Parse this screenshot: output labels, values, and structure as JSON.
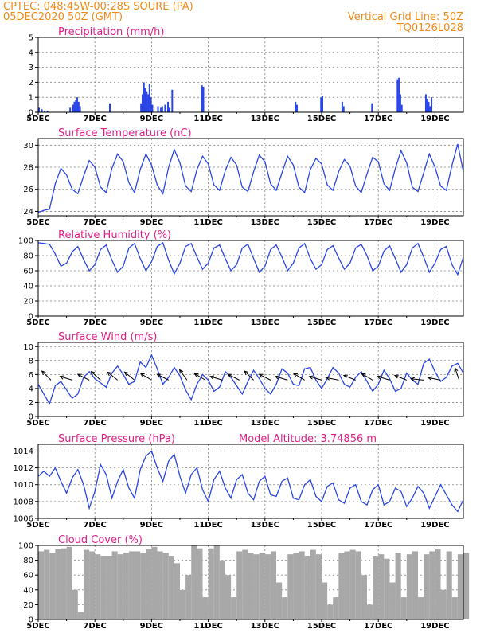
{
  "header": {
    "station": "CPTEC:   048:45W-00:28S   SOURE (PA)",
    "run": "05DEC2020 50Z (GMT)",
    "grid_note": "Vertical Grid Line: 50Z",
    "model": "TQ0126L028"
  },
  "colors": {
    "header": "#f08a18",
    "panel_title": "#e0208a",
    "series": "#2a46e6",
    "cloud": "#a8a8a8",
    "grid": "#888888",
    "wind_vector": "#000000"
  },
  "x_axis": {
    "ticks": [
      "5DEC",
      "7DEC",
      "9DEC",
      "11DEC",
      "13DEC",
      "15DEC",
      "17DEC",
      "19DEC"
    ],
    "start_day": 5,
    "end_day": 20
  },
  "chart_data": [
    {
      "type": "bar",
      "title": "Precipitation (mm/h)",
      "ylim": [
        0,
        5
      ],
      "yticks": [
        0,
        1,
        2,
        3,
        4,
        5
      ],
      "grid": true,
      "bars": [
        [
          5.0,
          0.3
        ],
        [
          5.1,
          0.2
        ],
        [
          5.2,
          0.1
        ],
        [
          5.3,
          0.1
        ],
        [
          6.1,
          0.3
        ],
        [
          6.2,
          0.5
        ],
        [
          6.25,
          0.7
        ],
        [
          6.3,
          0.8
        ],
        [
          6.35,
          1.0
        ],
        [
          6.4,
          0.7
        ],
        [
          6.45,
          0.4
        ],
        [
          7.5,
          0.6
        ],
        [
          8.6,
          0.6
        ],
        [
          8.65,
          1.2
        ],
        [
          8.7,
          2.0
        ],
        [
          8.75,
          1.6
        ],
        [
          8.8,
          1.4
        ],
        [
          8.85,
          1.2
        ],
        [
          8.9,
          1.9
        ],
        [
          8.95,
          1.0
        ],
        [
          9.0,
          0.5
        ],
        [
          9.2,
          0.4
        ],
        [
          9.3,
          0.3
        ],
        [
          9.35,
          0.4
        ],
        [
          9.45,
          0.5
        ],
        [
          9.55,
          0.7
        ],
        [
          9.6,
          0.3
        ],
        [
          9.7,
          1.5
        ],
        [
          10.75,
          1.8
        ],
        [
          10.8,
          1.7
        ],
        [
          14.05,
          0.7
        ],
        [
          14.1,
          0.5
        ],
        [
          14.95,
          1.0
        ],
        [
          15.0,
          1.1
        ],
        [
          15.7,
          0.7
        ],
        [
          15.75,
          0.4
        ],
        [
          16.75,
          0.6
        ],
        [
          17.65,
          2.2
        ],
        [
          17.7,
          2.3
        ],
        [
          17.75,
          1.2
        ],
        [
          17.8,
          0.5
        ],
        [
          18.65,
          1.2
        ],
        [
          18.7,
          0.9
        ],
        [
          18.75,
          0.7
        ],
        [
          18.8,
          0.4
        ],
        [
          18.85,
          1.0
        ]
      ]
    },
    {
      "type": "line",
      "title": "Surface Temperature (nC)",
      "ylim": [
        23.6,
        30.6
      ],
      "yticks": [
        24,
        26,
        28,
        30
      ],
      "grid": true,
      "x": [
        5.0,
        5.2,
        5.4,
        5.6,
        5.8,
        6.0,
        6.2,
        6.4,
        6.6,
        6.8,
        7.0,
        7.2,
        7.4,
        7.6,
        7.8,
        8.0,
        8.2,
        8.4,
        8.6,
        8.8,
        9.0,
        9.2,
        9.4,
        9.6,
        9.8,
        10.0,
        10.2,
        10.4,
        10.6,
        10.8,
        11.0,
        11.2,
        11.4,
        11.6,
        11.8,
        12.0,
        12.2,
        12.4,
        12.6,
        12.8,
        13.0,
        13.2,
        13.4,
        13.6,
        13.8,
        14.0,
        14.2,
        14.4,
        14.6,
        14.8,
        15.0,
        15.2,
        15.4,
        15.6,
        15.8,
        16.0,
        16.2,
        16.4,
        16.6,
        16.8,
        17.0,
        17.2,
        17.4,
        17.6,
        17.8,
        18.0,
        18.2,
        18.4,
        18.6,
        18.8,
        19.0,
        19.2,
        19.4,
        19.6,
        19.8,
        20.0
      ],
      "y": [
        23.9,
        24.1,
        24.2,
        26.5,
        27.9,
        27.3,
        26.0,
        25.6,
        27.2,
        28.6,
        28.0,
        26.2,
        25.7,
        27.9,
        29.2,
        28.5,
        26.6,
        25.7,
        27.8,
        29.2,
        28.2,
        26.4,
        25.6,
        28.0,
        29.6,
        28.4,
        26.3,
        25.8,
        27.8,
        29.0,
        28.3,
        26.4,
        25.9,
        27.7,
        28.9,
        28.2,
        26.2,
        25.8,
        27.6,
        29.1,
        28.5,
        26.5,
        25.9,
        27.5,
        29.0,
        28.2,
        26.2,
        25.7,
        27.8,
        28.8,
        28.3,
        26.4,
        25.9,
        27.6,
        28.7,
        28.1,
        26.3,
        25.7,
        27.4,
        28.9,
        28.5,
        26.5,
        25.9,
        27.9,
        29.5,
        28.4,
        26.2,
        25.8,
        27.5,
        29.2,
        28.0,
        26.3,
        25.9,
        28.2,
        30.1,
        27.6
      ]
    },
    {
      "type": "line",
      "title": "Relative Humidity (%)",
      "ylim": [
        0,
        100
      ],
      "yticks": [
        0,
        20,
        40,
        60,
        80,
        100
      ],
      "grid": true,
      "x": [
        5.0,
        5.2,
        5.4,
        5.6,
        5.8,
        6.0,
        6.2,
        6.4,
        6.6,
        6.8,
        7.0,
        7.2,
        7.4,
        7.6,
        7.8,
        8.0,
        8.2,
        8.4,
        8.6,
        8.8,
        9.0,
        9.2,
        9.4,
        9.6,
        9.8,
        10.0,
        10.2,
        10.4,
        10.6,
        10.8,
        11.0,
        11.2,
        11.4,
        11.6,
        11.8,
        12.0,
        12.2,
        12.4,
        12.6,
        12.8,
        13.0,
        13.2,
        13.4,
        13.6,
        13.8,
        14.0,
        14.2,
        14.4,
        14.6,
        14.8,
        15.0,
        15.2,
        15.4,
        15.6,
        15.8,
        16.0,
        16.2,
        16.4,
        16.6,
        16.8,
        17.0,
        17.2,
        17.4,
        17.6,
        17.8,
        18.0,
        18.2,
        18.4,
        18.6,
        18.8,
        19.0,
        19.2,
        19.4,
        19.6,
        19.8,
        20.0
      ],
      "y": [
        97,
        96,
        95,
        82,
        66,
        70,
        85,
        92,
        75,
        60,
        68,
        88,
        94,
        74,
        58,
        66,
        90,
        96,
        76,
        60,
        72,
        92,
        97,
        74,
        56,
        70,
        92,
        96,
        78,
        62,
        70,
        90,
        94,
        76,
        60,
        68,
        90,
        95,
        76,
        58,
        66,
        88,
        94,
        78,
        60,
        70,
        90,
        96,
        76,
        62,
        68,
        88,
        93,
        77,
        62,
        70,
        90,
        95,
        80,
        60,
        66,
        86,
        93,
        76,
        58,
        68,
        90,
        96,
        78,
        58,
        70,
        88,
        92,
        68,
        55,
        78
      ]
    },
    {
      "type": "line",
      "title": "Surface Wind (m/s)",
      "ylim": [
        0,
        10.6
      ],
      "yticks": [
        0,
        2,
        4,
        6,
        8,
        10
      ],
      "grid": true,
      "x": [
        5.0,
        5.2,
        5.4,
        5.6,
        5.8,
        6.0,
        6.2,
        6.4,
        6.6,
        6.8,
        7.0,
        7.2,
        7.4,
        7.6,
        7.8,
        8.0,
        8.2,
        8.4,
        8.6,
        8.8,
        9.0,
        9.2,
        9.4,
        9.6,
        9.8,
        10.0,
        10.2,
        10.4,
        10.6,
        10.8,
        11.0,
        11.2,
        11.4,
        11.6,
        11.8,
        12.0,
        12.2,
        12.4,
        12.6,
        12.8,
        13.0,
        13.2,
        13.4,
        13.6,
        13.8,
        14.0,
        14.2,
        14.4,
        14.6,
        14.8,
        15.0,
        15.2,
        15.4,
        15.6,
        15.8,
        16.0,
        16.2,
        16.4,
        16.6,
        16.8,
        17.0,
        17.2,
        17.4,
        17.6,
        17.8,
        18.0,
        18.2,
        18.4,
        18.6,
        18.8,
        19.0,
        19.2,
        19.4,
        19.6,
        19.8,
        20.0
      ],
      "y": [
        4.6,
        3.2,
        1.8,
        4.4,
        5.0,
        3.8,
        2.6,
        3.2,
        5.6,
        6.4,
        5.4,
        4.8,
        4.2,
        6.2,
        7.2,
        6.0,
        4.6,
        5.0,
        7.8,
        7.0,
        8.8,
        6.8,
        4.6,
        5.6,
        7.0,
        5.8,
        3.8,
        2.4,
        4.6,
        6.0,
        5.2,
        3.6,
        4.2,
        6.4,
        5.6,
        4.4,
        3.2,
        5.0,
        6.6,
        5.4,
        4.0,
        3.2,
        4.6,
        6.8,
        6.2,
        4.6,
        4.4,
        6.8,
        7.0,
        5.2,
        4.0,
        5.4,
        7.0,
        6.2,
        4.6,
        4.2,
        5.6,
        6.4,
        5.0,
        3.6,
        4.6,
        6.6,
        5.4,
        3.6,
        4.0,
        6.2,
        5.2,
        4.6,
        7.6,
        8.2,
        6.4,
        5.0,
        5.6,
        7.2,
        7.6,
        6.2
      ],
      "vectors": [
        {
          "x": 5.45,
          "u": -1,
          "v": 1
        },
        {
          "x": 6.2,
          "u": -1,
          "v": 0.3
        },
        {
          "x": 6.8,
          "u": -1,
          "v": 0.5
        },
        {
          "x": 7.2,
          "u": -1,
          "v": 0.9
        },
        {
          "x": 7.8,
          "u": -1,
          "v": 0.8
        },
        {
          "x": 8.4,
          "u": -1,
          "v": 0.8
        },
        {
          "x": 9.0,
          "u": -1,
          "v": 0.6
        },
        {
          "x": 9.6,
          "u": -1,
          "v": 0.5
        },
        {
          "x": 10.25,
          "u": -1,
          "v": 1.4
        },
        {
          "x": 10.9,
          "u": -1,
          "v": 0.6
        },
        {
          "x": 11.5,
          "u": -1,
          "v": 0.3
        },
        {
          "x": 12.1,
          "u": -1,
          "v": 0.5
        },
        {
          "x": 12.6,
          "u": -1,
          "v": 1.0
        },
        {
          "x": 13.2,
          "u": -1,
          "v": 0.5
        },
        {
          "x": 13.8,
          "u": -1,
          "v": 0.3
        },
        {
          "x": 14.4,
          "u": -1,
          "v": 0.6
        },
        {
          "x": 15.0,
          "u": -1,
          "v": 0.3
        },
        {
          "x": 15.6,
          "u": -1,
          "v": 0.2
        },
        {
          "x": 16.2,
          "u": -1,
          "v": 0.4
        },
        {
          "x": 16.8,
          "u": -1,
          "v": 0.6
        },
        {
          "x": 17.4,
          "u": -1,
          "v": 0.3
        },
        {
          "x": 18.0,
          "u": -1,
          "v": 0.4
        },
        {
          "x": 18.6,
          "u": -1,
          "v": 0.1
        },
        {
          "x": 19.2,
          "u": -1,
          "v": 0.2
        },
        {
          "x": 19.85,
          "u": -0.4,
          "v": 1.2
        }
      ]
    },
    {
      "type": "line",
      "title": "Surface Pressure (hPa)",
      "annotation": "Model Altitude: 3.74856 m",
      "ylim": [
        1006,
        1014.8
      ],
      "yticks": [
        1006,
        1008,
        1010,
        1012,
        1014
      ],
      "grid": true,
      "x": [
        5.0,
        5.2,
        5.4,
        5.6,
        5.8,
        6.0,
        6.2,
        6.4,
        6.6,
        6.8,
        7.0,
        7.2,
        7.4,
        7.6,
        7.8,
        8.0,
        8.2,
        8.4,
        8.6,
        8.8,
        9.0,
        9.2,
        9.4,
        9.6,
        9.8,
        10.0,
        10.2,
        10.4,
        10.6,
        10.8,
        11.0,
        11.2,
        11.4,
        11.6,
        11.8,
        12.0,
        12.2,
        12.4,
        12.6,
        12.8,
        13.0,
        13.2,
        13.4,
        13.6,
        13.8,
        14.0,
        14.2,
        14.4,
        14.6,
        14.8,
        15.0,
        15.2,
        15.4,
        15.6,
        15.8,
        16.0,
        16.2,
        16.4,
        16.6,
        16.8,
        17.0,
        17.2,
        17.4,
        17.6,
        17.8,
        18.0,
        18.2,
        18.4,
        18.6,
        18.8,
        19.0,
        19.2,
        19.4,
        19.6,
        19.8,
        20.0
      ],
      "y": [
        1011.0,
        1011.6,
        1011.0,
        1012.0,
        1010.4,
        1009.0,
        1010.8,
        1011.8,
        1010.0,
        1007.2,
        1009.2,
        1012.4,
        1011.2,
        1008.4,
        1010.4,
        1011.8,
        1009.6,
        1008.4,
        1011.8,
        1013.4,
        1014.0,
        1012.0,
        1010.4,
        1012.8,
        1013.6,
        1011.0,
        1009.0,
        1011.2,
        1012.0,
        1009.4,
        1008.0,
        1010.6,
        1011.6,
        1009.6,
        1008.4,
        1010.6,
        1011.2,
        1009.0,
        1008.2,
        1010.4,
        1011.0,
        1008.8,
        1008.6,
        1010.4,
        1010.8,
        1008.4,
        1008.2,
        1010.0,
        1010.6,
        1008.6,
        1008.0,
        1009.8,
        1010.2,
        1008.2,
        1007.8,
        1009.6,
        1010.0,
        1008.0,
        1007.6,
        1009.4,
        1010.0,
        1007.6,
        1008.0,
        1009.6,
        1009.2,
        1007.4,
        1008.4,
        1009.8,
        1009.0,
        1007.2,
        1008.6,
        1010.0,
        1008.8,
        1007.6,
        1006.8,
        1008.2
      ]
    },
    {
      "type": "area",
      "title": "Cloud Cover (%)",
      "ylim": [
        0,
        100
      ],
      "yticks": [
        0,
        20,
        40,
        60,
        80,
        100
      ],
      "grid": true,
      "x": [
        5.0,
        5.2,
        5.4,
        5.6,
        5.8,
        6.0,
        6.2,
        6.4,
        6.6,
        6.8,
        7.0,
        7.2,
        7.4,
        7.6,
        7.8,
        8.0,
        8.2,
        8.4,
        8.6,
        8.8,
        9.0,
        9.2,
        9.4,
        9.6,
        9.8,
        10.0,
        10.2,
        10.4,
        10.6,
        10.8,
        11.0,
        11.2,
        11.4,
        11.6,
        11.8,
        12.0,
        12.2,
        12.4,
        12.6,
        12.8,
        13.0,
        13.2,
        13.4,
        13.6,
        13.8,
        14.0,
        14.2,
        14.4,
        14.6,
        14.8,
        15.0,
        15.2,
        15.4,
        15.6,
        15.8,
        16.0,
        16.2,
        16.4,
        16.6,
        16.8,
        17.0,
        17.2,
        17.4,
        17.6,
        17.8,
        18.0,
        18.2,
        18.4,
        18.6,
        18.8,
        19.0,
        19.2,
        19.4,
        19.6,
        19.8,
        20.0
      ],
      "y": [
        92,
        94,
        90,
        95,
        96,
        98,
        40,
        10,
        94,
        92,
        88,
        86,
        86,
        92,
        88,
        90,
        92,
        92,
        90,
        95,
        98,
        92,
        90,
        86,
        76,
        40,
        60,
        100,
        96,
        30,
        96,
        100,
        80,
        60,
        30,
        92,
        94,
        90,
        88,
        90,
        88,
        92,
        50,
        30,
        88,
        90,
        92,
        86,
        94,
        88,
        50,
        20,
        30,
        90,
        92,
        94,
        92,
        60,
        20,
        86,
        88,
        82,
        50,
        90,
        30,
        88,
        92,
        30,
        88,
        92,
        95,
        40,
        92,
        30,
        88,
        90
      ]
    }
  ]
}
